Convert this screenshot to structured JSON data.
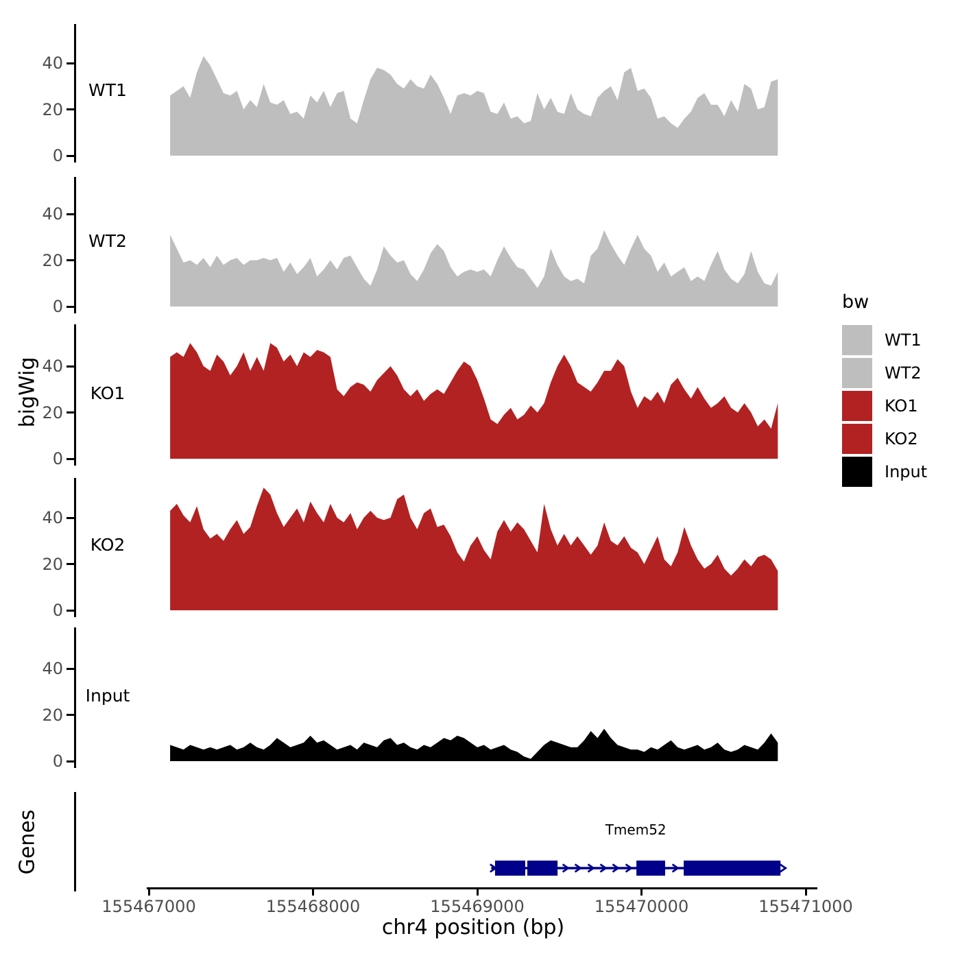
{
  "figure": {
    "y_axis_title": "bigWig",
    "genes_axis_title": "Genes",
    "x_axis_title": "chr4 position (bp)"
  },
  "legend": {
    "title": "bw",
    "entries": [
      {
        "label": "WT1",
        "color": "#BEBEBE"
      },
      {
        "label": "WT2",
        "color": "#BEBEBE"
      },
      {
        "label": "KO1",
        "color": "#B22222"
      },
      {
        "label": "KO2",
        "color": "#B22222"
      },
      {
        "label": "Input",
        "color": "#000000"
      }
    ]
  },
  "chart_data": {
    "type": "area",
    "title": "",
    "xlabel": "chr4 position (bp)",
    "ylabel": "bigWig",
    "x_ticks": [
      155467000,
      155468000,
      155469000,
      155470000,
      155471000
    ],
    "x_tick_labels": [
      "155467000",
      "155468000",
      "155469000",
      "155470000",
      "155471000"
    ],
    "y_ticks": [
      0,
      20,
      40
    ],
    "ylim": [
      0,
      57
    ],
    "xlim": [
      155466980,
      155471080
    ],
    "x_start": 155467130,
    "x_end": 155470830,
    "grid": false,
    "legend_position": "right",
    "panels": [
      {
        "name": "WT1",
        "color": "#BEBEBE",
        "values": [
          26,
          28,
          30,
          25,
          36,
          43,
          39,
          33,
          27,
          26,
          28,
          20,
          24,
          21,
          31,
          23,
          22,
          24,
          18,
          19,
          16,
          26,
          23,
          28,
          21,
          27,
          28,
          16,
          14,
          24,
          33,
          38,
          37,
          35,
          31,
          29,
          33,
          30,
          29,
          35,
          31,
          25,
          18,
          26,
          27,
          26,
          28,
          27,
          19,
          18,
          23,
          16,
          17,
          14,
          15,
          27,
          20,
          25,
          19,
          18,
          27,
          20,
          18,
          17,
          25,
          28,
          30,
          24,
          36,
          38,
          28,
          29,
          25,
          16,
          17,
          14,
          12,
          16,
          19,
          25,
          27,
          22,
          22,
          17,
          24,
          19,
          31,
          29,
          20,
          21,
          32,
          33
        ]
      },
      {
        "name": "WT2",
        "color": "#BEBEBE",
        "values": [
          31,
          25,
          19,
          20,
          18,
          21,
          17,
          22,
          18,
          20,
          21,
          18,
          20,
          20,
          21,
          20,
          21,
          15,
          19,
          14,
          17,
          21,
          13,
          16,
          20,
          16,
          21,
          22,
          17,
          12,
          9,
          16,
          26,
          22,
          19,
          20,
          14,
          11,
          16,
          23,
          27,
          24,
          17,
          13,
          15,
          16,
          15,
          16,
          13,
          20,
          26,
          21,
          17,
          16,
          12,
          8,
          13,
          25,
          18,
          13,
          11,
          12,
          10,
          22,
          25,
          33,
          27,
          22,
          18,
          25,
          31,
          25,
          22,
          15,
          19,
          13,
          15,
          17,
          11,
          13,
          11,
          18,
          24,
          16,
          12,
          10,
          14,
          24,
          15,
          10,
          9,
          15
        ]
      },
      {
        "name": "KO1",
        "color": "#B22222",
        "values": [
          44,
          46,
          44,
          50,
          46,
          40,
          38,
          45,
          42,
          36,
          40,
          46,
          38,
          44,
          38,
          50,
          48,
          42,
          45,
          40,
          46,
          44,
          47,
          46,
          44,
          30,
          27,
          31,
          33,
          32,
          29,
          34,
          37,
          40,
          36,
          30,
          27,
          30,
          25,
          28,
          30,
          28,
          33,
          38,
          42,
          40,
          34,
          26,
          17,
          15,
          19,
          22,
          17,
          19,
          23,
          20,
          24,
          33,
          40,
          45,
          40,
          33,
          31,
          29,
          33,
          38,
          38,
          43,
          40,
          29,
          22,
          27,
          25,
          29,
          24,
          32,
          35,
          30,
          26,
          31,
          26,
          22,
          24,
          27,
          22,
          20,
          24,
          20,
          14,
          17,
          13,
          24
        ]
      },
      {
        "name": "KO2",
        "color": "#B22222",
        "values": [
          43,
          46,
          41,
          38,
          45,
          35,
          31,
          33,
          30,
          35,
          39,
          33,
          36,
          45,
          53,
          50,
          42,
          36,
          40,
          44,
          38,
          47,
          42,
          38,
          46,
          40,
          38,
          42,
          35,
          40,
          43,
          40,
          39,
          40,
          48,
          50,
          40,
          35,
          42,
          44,
          36,
          37,
          32,
          25,
          21,
          28,
          32,
          26,
          22,
          34,
          39,
          34,
          38,
          35,
          30,
          25,
          46,
          35,
          28,
          33,
          28,
          32,
          28,
          24,
          28,
          38,
          30,
          28,
          32,
          27,
          25,
          20,
          26,
          32,
          22,
          19,
          25,
          36,
          28,
          22,
          18,
          20,
          24,
          18,
          15,
          18,
          22,
          19,
          23,
          24,
          22,
          17
        ]
      },
      {
        "name": "Input",
        "color": "#000000",
        "values": [
          7,
          6,
          5,
          7,
          6,
          5,
          6,
          5,
          6,
          7,
          5,
          6,
          8,
          6,
          5,
          7,
          10,
          8,
          6,
          7,
          8,
          11,
          8,
          9,
          7,
          5,
          6,
          7,
          5,
          8,
          7,
          6,
          9,
          10,
          7,
          8,
          6,
          5,
          7,
          6,
          8,
          10,
          9,
          11,
          10,
          8,
          6,
          7,
          5,
          6,
          7,
          5,
          4,
          2,
          1,
          4,
          7,
          9,
          8,
          7,
          6,
          6,
          9,
          13,
          10,
          14,
          10,
          7,
          6,
          5,
          5,
          4,
          6,
          5,
          7,
          9,
          6,
          5,
          6,
          7,
          5,
          6,
          8,
          5,
          4,
          5,
          7,
          6,
          5,
          8,
          12,
          8
        ]
      }
    ],
    "genes": {
      "track_label": "Genes",
      "gene": {
        "name": "Tmem52",
        "strand": "+",
        "color": "#00008B",
        "start": 155469085,
        "end": 155470846,
        "exons": [
          [
            155469108,
            155469292
          ],
          [
            155469305,
            155469489
          ],
          [
            155469969,
            155470144
          ],
          [
            155470257,
            155470846
          ]
        ],
        "arrows": [
          155469539,
          155469614,
          155469693,
          155469768,
          155469843,
          155469923,
          155470207
        ]
      }
    }
  }
}
